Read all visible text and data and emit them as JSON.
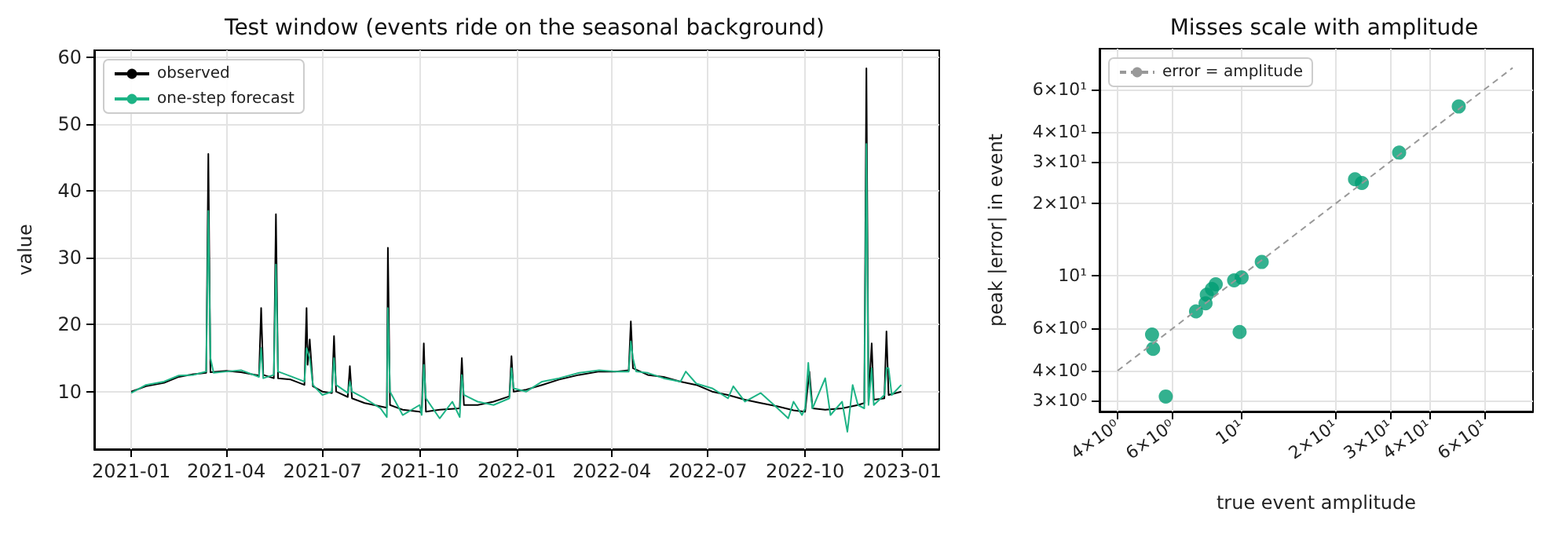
{
  "chart_data": [
    {
      "type": "line",
      "title": "Test window (events ride on the seasonal background)",
      "ylabel": "value",
      "series": [
        {
          "name": "observed",
          "color": "#000000",
          "x": [
            "2021-01-01",
            "2021-01-15",
            "2021-02-01",
            "2021-02-15",
            "2021-03-01",
            "2021-03-13",
            "2021-03-15",
            "2021-03-17",
            "2021-04-01",
            "2021-04-15",
            "2021-05-02",
            "2021-05-04",
            "2021-05-06",
            "2021-05-16",
            "2021-05-18",
            "2021-05-20",
            "2021-06-01",
            "2021-06-14",
            "2021-06-16",
            "2021-06-17",
            "2021-06-19",
            "2021-06-22",
            "2021-07-01",
            "2021-07-10",
            "2021-07-12",
            "2021-07-14",
            "2021-07-25",
            "2021-07-27",
            "2021-07-29",
            "2021-08-10",
            "2021-08-25",
            "2021-08-31",
            "2021-09-01",
            "2021-09-03",
            "2021-09-15",
            "2021-10-01",
            "2021-10-03",
            "2021-10-05",
            "2021-10-07",
            "2021-10-20",
            "2021-11-08",
            "2021-11-10",
            "2021-11-12",
            "2021-11-25",
            "2021-12-10",
            "2021-12-25",
            "2021-12-27",
            "2021-12-29",
            "2022-01-10",
            "2022-01-25",
            "2022-02-10",
            "2022-03-01",
            "2022-03-20",
            "2022-04-05",
            "2022-04-17",
            "2022-04-19",
            "2022-04-21",
            "2022-05-05",
            "2022-05-20",
            "2022-06-05",
            "2022-06-20",
            "2022-07-05",
            "2022-07-20",
            "2022-08-05",
            "2022-08-20",
            "2022-09-05",
            "2022-09-20",
            "2022-10-01",
            "2022-10-05",
            "2022-10-08",
            "2022-10-20",
            "2022-11-05",
            "2022-11-20",
            "2022-11-26",
            "2022-11-28",
            "2022-11-30",
            "2022-12-03",
            "2022-12-05",
            "2022-12-15",
            "2022-12-17",
            "2022-12-19",
            "2022-12-31"
          ],
          "values": [
            10.0,
            10.8,
            11.3,
            12.2,
            12.6,
            12.8,
            45.5,
            12.9,
            13.1,
            12.9,
            12.4,
            22.5,
            12.5,
            12.0,
            36.5,
            12.0,
            11.8,
            11.0,
            22.5,
            14.0,
            17.8,
            10.8,
            10.0,
            9.8,
            18.3,
            10.0,
            9.2,
            13.8,
            9.0,
            8.3,
            7.8,
            7.6,
            31.5,
            8.0,
            7.3,
            7.0,
            6.8,
            17.2,
            7.0,
            7.3,
            7.5,
            15.0,
            8.0,
            8.0,
            8.5,
            9.3,
            15.3,
            10.0,
            10.3,
            11.0,
            11.8,
            12.5,
            13.0,
            13.0,
            13.2,
            20.5,
            13.5,
            12.5,
            12.2,
            11.5,
            11.0,
            10.0,
            9.5,
            8.8,
            8.3,
            7.8,
            7.2,
            7.0,
            13.0,
            7.5,
            7.3,
            7.5,
            8.0,
            8.3,
            58.3,
            8.5,
            17.2,
            8.8,
            9.0,
            19.0,
            9.5,
            10.0
          ]
        },
        {
          "name": "one-step forecast",
          "color": "#1db385",
          "x": [
            "2021-01-01",
            "2021-01-15",
            "2021-02-01",
            "2021-02-15",
            "2021-03-01",
            "2021-03-13",
            "2021-03-15",
            "2021-03-17",
            "2021-03-20",
            "2021-04-01",
            "2021-04-15",
            "2021-05-02",
            "2021-05-04",
            "2021-05-06",
            "2021-05-16",
            "2021-05-18",
            "2021-05-20",
            "2021-06-01",
            "2021-06-14",
            "2021-06-16",
            "2021-06-19",
            "2021-06-22",
            "2021-07-01",
            "2021-07-10",
            "2021-07-12",
            "2021-07-14",
            "2021-07-25",
            "2021-07-27",
            "2021-07-29",
            "2021-08-10",
            "2021-08-25",
            "2021-08-31",
            "2021-09-01",
            "2021-09-03",
            "2021-09-15",
            "2021-10-01",
            "2021-10-03",
            "2021-10-05",
            "2021-10-07",
            "2021-10-20",
            "2021-11-01",
            "2021-11-08",
            "2021-11-10",
            "2021-11-12",
            "2021-11-25",
            "2021-12-10",
            "2021-12-25",
            "2021-12-27",
            "2021-12-29",
            "2022-01-10",
            "2022-01-25",
            "2022-02-10",
            "2022-03-01",
            "2022-03-20",
            "2022-04-05",
            "2022-04-17",
            "2022-04-19",
            "2022-04-21",
            "2022-04-24",
            "2022-05-05",
            "2022-05-20",
            "2022-06-05",
            "2022-06-10",
            "2022-06-20",
            "2022-07-05",
            "2022-07-20",
            "2022-07-25",
            "2022-08-05",
            "2022-08-20",
            "2022-09-05",
            "2022-09-15",
            "2022-09-20",
            "2022-09-28",
            "2022-10-01",
            "2022-10-04",
            "2022-10-06",
            "2022-10-08",
            "2022-10-20",
            "2022-10-25",
            "2022-11-05",
            "2022-11-10",
            "2022-11-15",
            "2022-11-20",
            "2022-11-26",
            "2022-11-28",
            "2022-11-30",
            "2022-12-03",
            "2022-12-05",
            "2022-12-15",
            "2022-12-17",
            "2022-12-19",
            "2022-12-22",
            "2022-12-31"
          ],
          "values": [
            9.8,
            11.0,
            11.5,
            12.4,
            12.5,
            13.0,
            37.0,
            15.0,
            12.8,
            13.0,
            13.2,
            12.2,
            16.5,
            12.0,
            12.5,
            29.0,
            13.0,
            12.3,
            11.5,
            16.5,
            15.0,
            11.0,
            9.5,
            10.0,
            15.0,
            11.0,
            9.8,
            11.5,
            10.0,
            9.0,
            7.5,
            6.2,
            22.5,
            10.0,
            6.5,
            8.0,
            6.5,
            14.0,
            9.0,
            6.0,
            8.5,
            6.2,
            12.5,
            9.5,
            8.5,
            8.0,
            9.0,
            13.5,
            10.5,
            10.0,
            11.5,
            12.0,
            12.8,
            13.2,
            13.0,
            13.0,
            17.5,
            15.0,
            13.0,
            12.8,
            12.0,
            11.5,
            13.0,
            11.2,
            10.5,
            9.0,
            10.8,
            8.5,
            9.8,
            7.5,
            6.0,
            8.5,
            6.5,
            7.5,
            14.3,
            10.0,
            7.5,
            12.0,
            6.5,
            8.5,
            4.0,
            11.0,
            8.0,
            7.5,
            47.0,
            8.0,
            13.5,
            8.0,
            9.5,
            13.5,
            13.5,
            9.5,
            11.0
          ]
        }
      ],
      "xlim": [
        "2020-11-27",
        "2023-02-05"
      ],
      "xticks": [
        "2021-01",
        "2021-04",
        "2021-07",
        "2021-10",
        "2022-01",
        "2022-04",
        "2022-07",
        "2022-10",
        "2023-01"
      ],
      "ylim": [
        1.4,
        61
      ],
      "yticks": [
        10,
        20,
        30,
        40,
        50,
        60
      ],
      "grid": true,
      "legend": "top left"
    },
    {
      "type": "scatter",
      "title": "Misses scale with amplitude",
      "xlabel": "true event amplitude",
      "ylabel": "peak |error| in event",
      "series": [
        {
          "color": "#009e73",
          "x": [
            5.16,
            5.2,
            5.71,
            7.14,
            7.66,
            7.73,
            8.03,
            8.26,
            9.46,
            10.0,
            9.85,
            11.6,
            23.1,
            24.3,
            32.0,
            49.7
          ],
          "values": [
            5.67,
            4.94,
            3.12,
            7.08,
            7.66,
            8.32,
            8.79,
            9.2,
            9.55,
            9.82,
            5.81,
            11.4,
            25.3,
            24.4,
            32.7,
            51.0
          ]
        },
        {
          "name": "error = amplitude",
          "type": "line",
          "color": "#999999",
          "line_style": "dashed",
          "marker": "none",
          "x": [
            4,
            74
          ],
          "values": [
            4,
            74
          ]
        }
      ],
      "log": "xy",
      "xlim": [
        3.5,
        86
      ],
      "ylim": [
        2.7,
        89
      ],
      "xticks": [
        {
          "value": 4,
          "label": "4×10⁰"
        },
        {
          "value": 6,
          "label": "6×10⁰"
        },
        {
          "value": 10,
          "label": "10¹"
        },
        {
          "value": 20,
          "label": "2×10¹"
        },
        {
          "value": 30,
          "label": "3×10¹"
        },
        {
          "value": 40,
          "label": "4×10¹"
        },
        {
          "value": 60,
          "label": "6×10¹"
        }
      ],
      "yticks": [
        {
          "value": 3,
          "label": "3×10⁰"
        },
        {
          "value": 4,
          "label": "4×10⁰"
        },
        {
          "value": 6,
          "label": "6×10⁰"
        },
        {
          "value": 10,
          "label": "10¹"
        },
        {
          "value": 20,
          "label": "2×10¹"
        },
        {
          "value": 30,
          "label": "3×10¹"
        },
        {
          "value": 40,
          "label": "4×10¹"
        },
        {
          "value": 60,
          "label": "6×10¹"
        }
      ],
      "grid": true,
      "legend": "top left",
      "marker": "circle"
    }
  ]
}
